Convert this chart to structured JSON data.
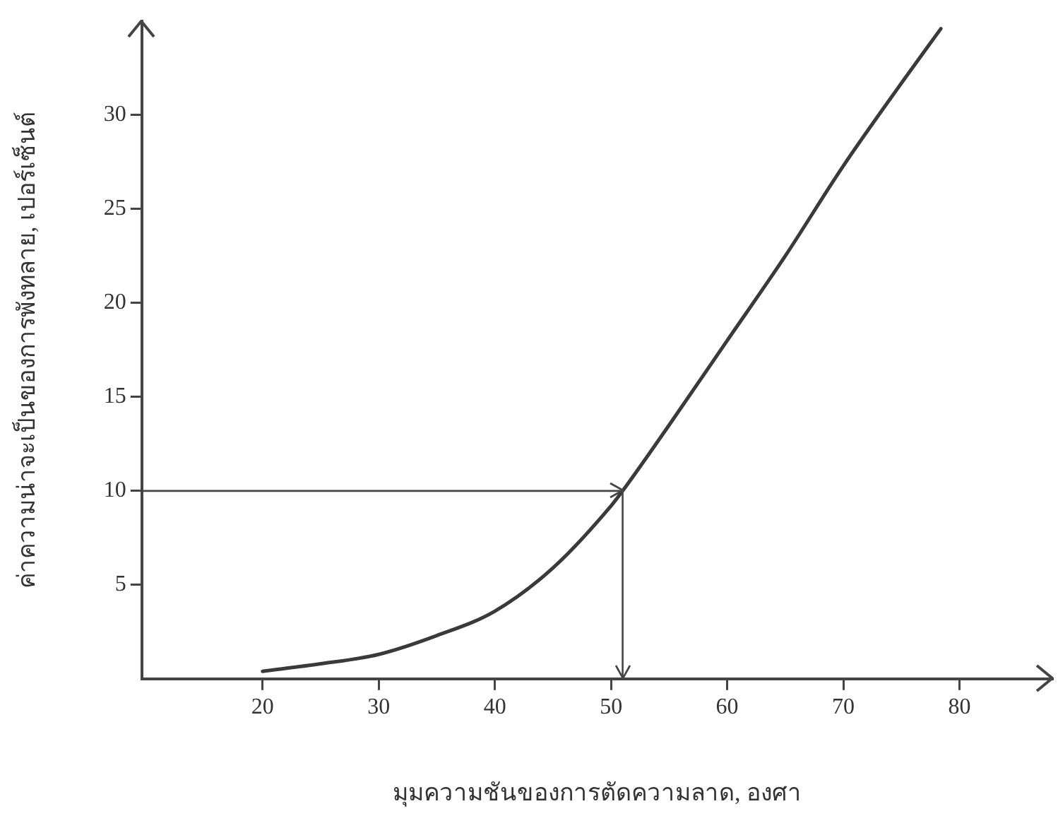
{
  "chart_data": {
    "type": "line",
    "xlabel": "มุมความชันของการตัดความลาด, องศา",
    "ylabel": "ค่าความน่าจะเป็นของการพังทลาย, เปอร์เซ็นต์",
    "x": [
      20,
      25,
      30,
      35,
      40,
      45,
      50,
      51,
      55,
      60,
      65,
      70,
      75,
      78.4
    ],
    "series": [
      {
        "color": "#3a3a3a",
        "values": [
          0.4,
          0.8,
          1.3,
          2.3,
          3.6,
          5.9,
          9.2,
          10,
          13.5,
          18,
          22.5,
          27.3,
          31.7,
          34.6
        ]
      }
    ],
    "xlim": [
      9.6,
      88
    ],
    "xticks": [
      20,
      30,
      40,
      50,
      60,
      70,
      80
    ],
    "ylim": [
      0,
      35
    ],
    "yticks": [
      5,
      10,
      15,
      20,
      25,
      30
    ],
    "ref_lines": [
      {
        "axis": "y",
        "value": 10
      },
      {
        "axis": "x",
        "value": 51
      }
    ],
    "grid": false,
    "legend": false,
    "marker": "none",
    "line_style": "solid"
  }
}
